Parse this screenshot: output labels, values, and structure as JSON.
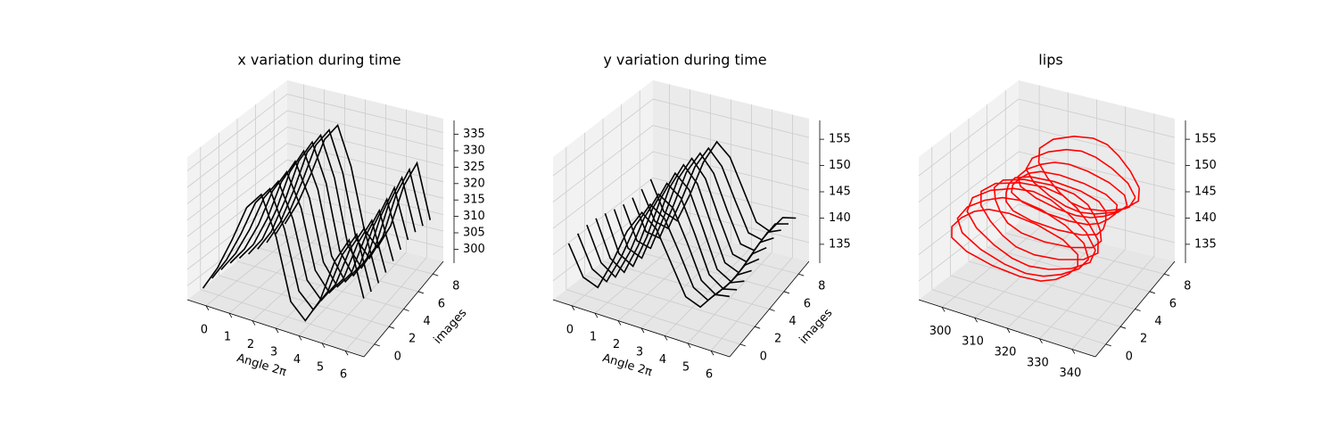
{
  "chart_data": [
    {
      "type": "line3d",
      "title": "x variation during time",
      "xlabel": "Angle 2π",
      "ylabel": "images",
      "zlabel": "",
      "xlim": [
        0,
        6.28
      ],
      "ylim": [
        0,
        9
      ],
      "zlim": [
        298,
        338
      ],
      "xticks": [
        "0",
        "1",
        "2",
        "3",
        "4",
        "5",
        "6"
      ],
      "yticks": [
        "0",
        "2",
        "4",
        "6",
        "8"
      ],
      "zticks": [
        "300",
        "305",
        "310",
        "315",
        "320",
        "325",
        "330",
        "335"
      ],
      "grid": true,
      "color": "#000000",
      "series_note": "one curve per image index 0-9, x position vs angle",
      "images": [
        0,
        1,
        2,
        3,
        4,
        5,
        6,
        7,
        8,
        9
      ],
      "angles": [
        0.0,
        0.57,
        1.14,
        1.71,
        2.28,
        2.86,
        3.43,
        4.0,
        4.57,
        5.14,
        5.71,
        6.28
      ],
      "base_values": [
        300,
        306,
        315,
        326,
        332,
        322,
        305,
        300,
        306,
        318,
        326,
        312
      ]
    },
    {
      "type": "line3d",
      "title": "y variation during time",
      "xlabel": "Angle 2π",
      "ylabel": "images",
      "zlabel": "",
      "xlim": [
        0,
        6.28
      ],
      "ylim": [
        0,
        9
      ],
      "zlim": [
        135,
        157
      ],
      "xticks": [
        "0",
        "1",
        "2",
        "3",
        "4",
        "5",
        "6"
      ],
      "yticks": [
        "0",
        "2",
        "4",
        "6",
        "8"
      ],
      "zticks": [
        "135",
        "140",
        "145",
        "150",
        "155"
      ],
      "grid": true,
      "color": "#000000",
      "series_note": "one curve per image index 0-9, y position vs angle",
      "images": [
        0,
        1,
        2,
        3,
        4,
        5,
        6,
        7,
        8,
        9
      ],
      "angles": [
        0.0,
        0.57,
        1.14,
        1.71,
        2.28,
        2.86,
        3.43,
        4.0,
        4.57,
        5.14,
        5.71,
        6.28
      ],
      "base_values": [
        143,
        138,
        137,
        142,
        148,
        152,
        150,
        145,
        140,
        139,
        142,
        143
      ]
    },
    {
      "type": "line3d",
      "title": "lips",
      "xlabel": "",
      "ylabel": "",
      "zlabel": "",
      "xlim": [
        296,
        342
      ],
      "ylim": [
        0,
        9
      ],
      "zlim": [
        135,
        157
      ],
      "xticks": [
        "300",
        "310",
        "320",
        "330",
        "340"
      ],
      "yticks": [
        "0",
        "2",
        "4",
        "6",
        "8"
      ],
      "zticks": [
        "135",
        "140",
        "145",
        "150",
        "155"
      ],
      "grid": true,
      "color": "#ff0000",
      "series_note": "closed lip contour (x, y) per image index 0-9"
    }
  ]
}
